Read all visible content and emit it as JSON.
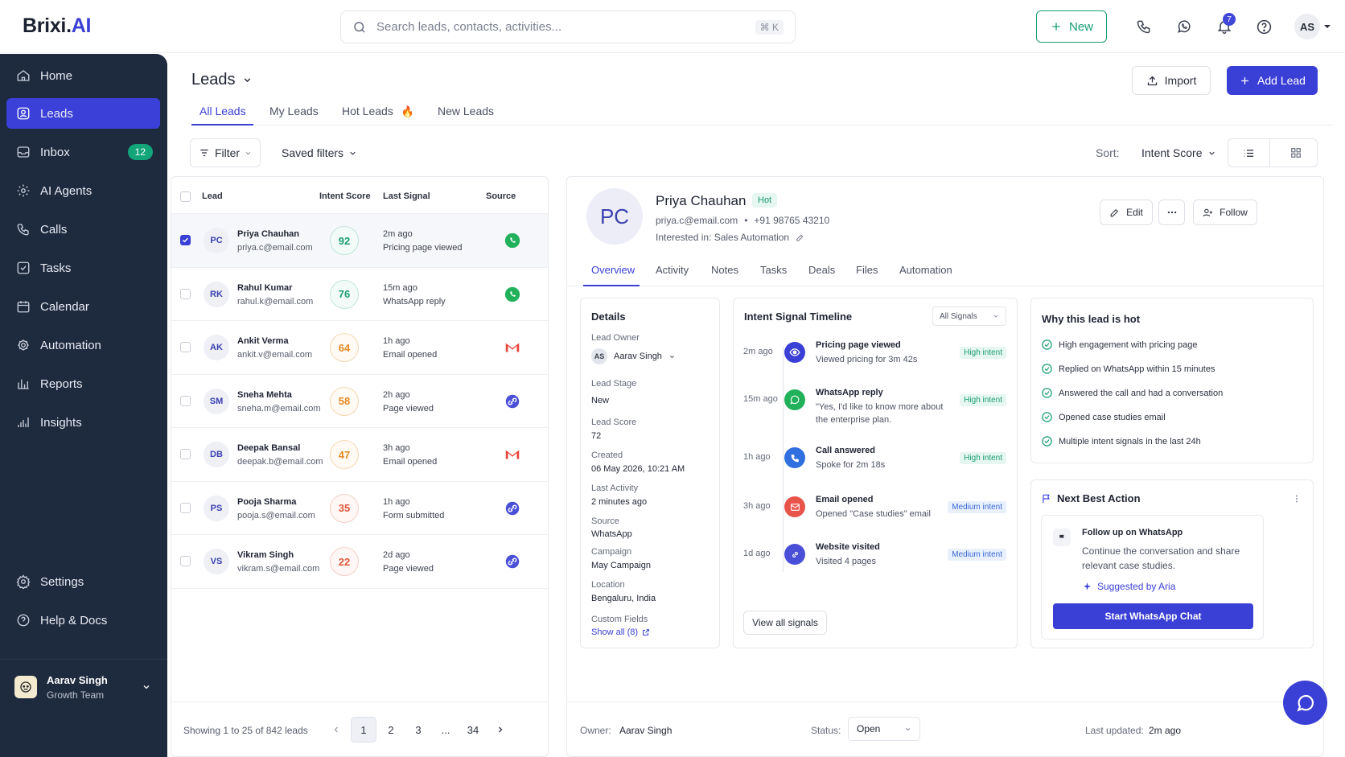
{
  "brand": {
    "name_part1": "Brixi.",
    "name_part2": "AI"
  },
  "search": {
    "placeholder": "Search leads, contacts, activities...",
    "shortcut": "⌘ K"
  },
  "topbar": {
    "new_label": "New",
    "notification_count": "7",
    "user_initials": "AS"
  },
  "sidebar": {
    "items": [
      {
        "label": "Home",
        "icon": "home-icon"
      },
      {
        "label": "Leads",
        "icon": "users-icon",
        "active": true
      },
      {
        "label": "Inbox",
        "icon": "inbox-icon",
        "badge": "12"
      },
      {
        "label": "AI Agents",
        "icon": "bot-icon"
      },
      {
        "label": "Calls",
        "icon": "phone-icon"
      },
      {
        "label": "Tasks",
        "icon": "check-square-icon"
      },
      {
        "label": "Calendar",
        "icon": "calendar-icon"
      },
      {
        "label": "Automation",
        "icon": "gear-icon"
      },
      {
        "label": "Reports",
        "icon": "bar-chart-icon"
      },
      {
        "label": "Insights",
        "icon": "insights-icon"
      },
      {
        "label": "Settings",
        "icon": "settings-icon"
      },
      {
        "label": "Help & Docs",
        "icon": "help-icon"
      }
    ],
    "user": {
      "name": "Aarav Singh",
      "team": "Growth Team"
    }
  },
  "page": {
    "title": "Leads",
    "import_label": "Import",
    "add_label": "Add Lead",
    "tabs": [
      "All Leads",
      "My Leads",
      "Hot Leads",
      "New Leads"
    ],
    "hot_emoji": "🔥",
    "filter_label": "Filter",
    "saved_filters_label": "Saved filters",
    "sort_label": "Sort:",
    "sort_value": "Intent Score"
  },
  "list": {
    "columns": [
      "Lead",
      "Intent Score",
      "Last Signal",
      "Source"
    ],
    "rows": [
      {
        "initials": "PC",
        "name": "Priya Chauhan",
        "email": "priya.c@email.com",
        "score": "92",
        "tone": "g",
        "time": "2m ago",
        "signal": "Pricing page viewed",
        "source": "whatsapp",
        "selected": true
      },
      {
        "initials": "RK",
        "name": "Rahul Kumar",
        "email": "rahul.k@email.com",
        "score": "76",
        "tone": "g",
        "time": "15m ago",
        "signal": "WhatsApp reply",
        "source": "whatsapp"
      },
      {
        "initials": "AK",
        "name": "Ankit Verma",
        "email": "ankit.v@email.com",
        "score": "64",
        "tone": "o",
        "time": "1h ago",
        "signal": "Email opened",
        "source": "gmail"
      },
      {
        "initials": "SM",
        "name": "Sneha Mehta",
        "email": "sneha.m@email.com",
        "score": "58",
        "tone": "o",
        "time": "2h ago",
        "signal": "Page viewed",
        "source": "link"
      },
      {
        "initials": "DB",
        "name": "Deepak Bansal",
        "email": "deepak.b@email.com",
        "score": "47",
        "tone": "o",
        "time": "3h ago",
        "signal": "Email opened",
        "source": "gmail"
      },
      {
        "initials": "PS",
        "name": "Pooja Sharma",
        "email": "pooja.s@email.com",
        "score": "35",
        "tone": "r",
        "time": "1h ago",
        "signal": "Form submitted",
        "source": "link"
      },
      {
        "initials": "VS",
        "name": "Vikram Singh",
        "email": "vikram.s@email.com",
        "score": "22",
        "tone": "r",
        "time": "2d ago",
        "signal": "Page viewed",
        "source": "link"
      }
    ],
    "pager": {
      "summary": "Showing 1 to 25 of 842 leads",
      "pages": [
        "1",
        "2",
        "3",
        "...",
        "34"
      ],
      "current": "1"
    }
  },
  "detail": {
    "initials": "PC",
    "name": "Priya Chauhan",
    "tag": "Hot",
    "email": "priya.c@email.com",
    "phone": "+91 98765 43210",
    "interest": "Interested in: Sales Automation",
    "edit_label": "Edit",
    "follow_label": "Follow",
    "tabs": [
      "Overview",
      "Activity",
      "Notes",
      "Tasks",
      "Deals",
      "Files",
      "Automation"
    ],
    "details": {
      "title": "Details",
      "owner_label": "Lead Owner",
      "owner_initials": "AS",
      "owner": "Aarav Singh",
      "stage_label": "Lead Stage",
      "stage": "New",
      "score_label": "Lead Score",
      "score": "72",
      "created_label": "Created",
      "created": "06 May 2026, 10:21 AM",
      "activity_label": "Last Activity",
      "activity": "2 minutes ago",
      "source_label": "Source",
      "source": "WhatsApp",
      "campaign_label": "Campaign",
      "campaign": "May Campaign",
      "location_label": "Location",
      "location": "Bengaluru, India",
      "custom_label": "Custom Fields",
      "show_all": "Show all (8)"
    },
    "timeline": {
      "title": "Intent Signal Timeline",
      "filter": "All Signals",
      "items": [
        {
          "time": "2m ago",
          "title": "Pricing page viewed",
          "desc": "Viewed pricing for 3m 42s",
          "badge": "High intent",
          "level": "h",
          "icon": "eye-icon",
          "color": "#3a40d6"
        },
        {
          "time": "15m ago",
          "title": "WhatsApp reply",
          "desc": "\"Yes, I'd like to know more about the enterprise plan.",
          "badge": "High intent",
          "level": "h",
          "icon": "whatsapp-icon",
          "color": "#21b15b"
        },
        {
          "time": "1h ago",
          "title": "Call answered",
          "desc": "Spoke for 2m 18s",
          "badge": "High intent",
          "level": "h",
          "icon": "phone-icon",
          "color": "#2f6fe0"
        },
        {
          "time": "3h ago",
          "title": "Email opened",
          "desc": "Opened \"Case studies\" email",
          "badge": "Medium intent",
          "level": "m",
          "icon": "mail-icon",
          "color": "#e8534a"
        },
        {
          "time": "1d ago",
          "title": "Website visited",
          "desc": "Visited 4 pages",
          "badge": "Medium intent",
          "level": "m",
          "icon": "link-icon",
          "color": "#4a4fd8"
        }
      ],
      "view_all": "View all signals"
    },
    "why": {
      "title": "Why this lead is hot",
      "reasons": [
        "High engagement with pricing page",
        "Replied on WhatsApp within 15 minutes",
        "Answered the call and had a conversation",
        "Opened case studies email",
        "Multiple intent signals in the last 24h"
      ]
    },
    "nba": {
      "title": "Next Best Action",
      "action_title": "Follow up on WhatsApp",
      "action_desc": "Continue the conversation and share relevant case studies.",
      "suggested": "Suggested by Aria",
      "cta": "Start WhatsApp Chat"
    },
    "footer": {
      "owner_label": "Owner:",
      "owner": "Aarav Singh",
      "status_label": "Status:",
      "status": "Open",
      "updated_label": "Last updated:",
      "updated": "2m ago"
    }
  },
  "colors": {
    "primary": "#3a40d6",
    "sidebar": "#1e2a3e",
    "success": "#1a9d73",
    "warning": "#e48a23",
    "danger": "#e0593b"
  }
}
